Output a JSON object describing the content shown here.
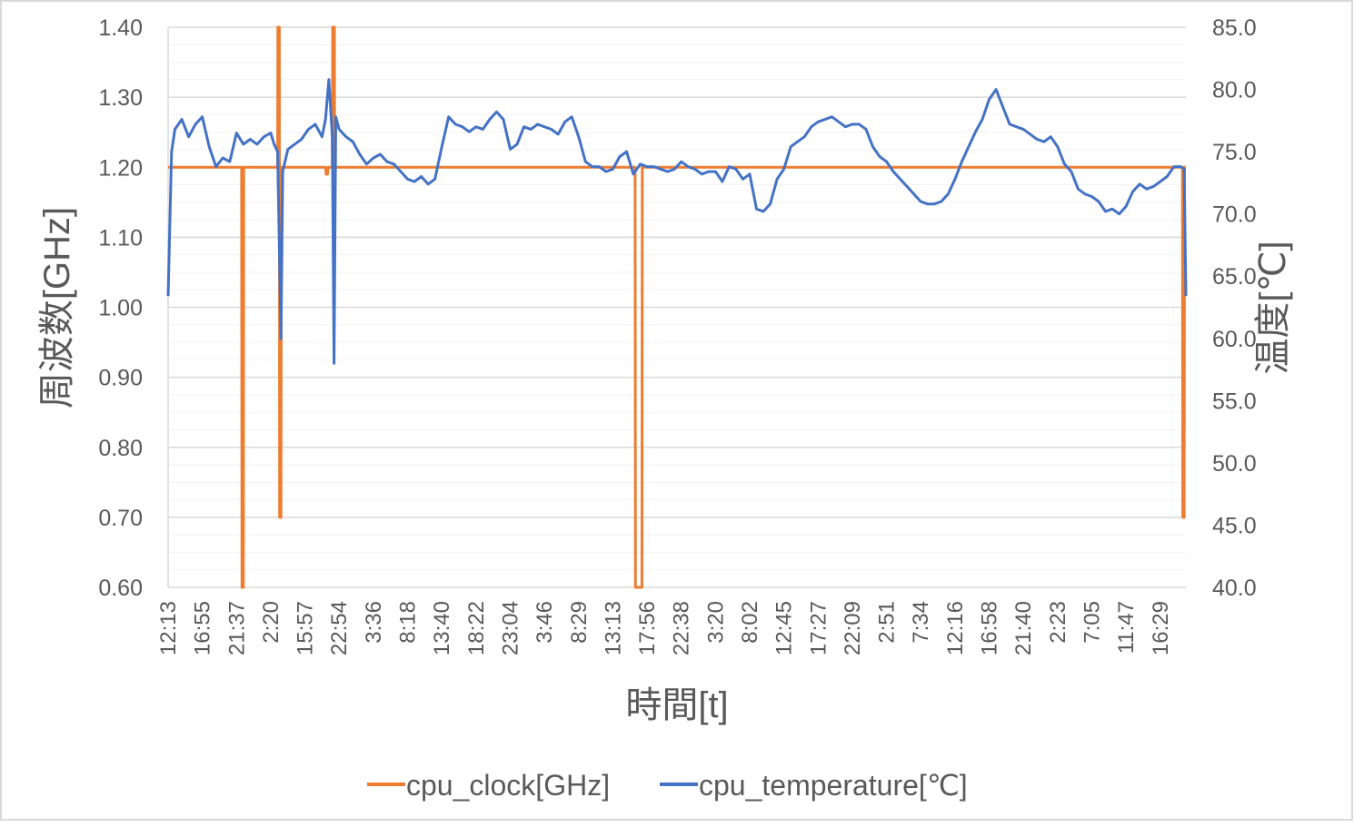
{
  "chart_data": {
    "type": "line",
    "title": "",
    "xlabel": "時間[t]",
    "ylabel": "周波数[GHz]",
    "ylabel_right": "温度[℃]",
    "ylim": [
      0.6,
      1.4
    ],
    "ylim_right": [
      40.0,
      85.0
    ],
    "y_ticks": [
      "0.60",
      "0.70",
      "0.80",
      "0.90",
      "1.00",
      "1.10",
      "1.20",
      "1.30",
      "1.40"
    ],
    "y_right_ticks": [
      "40.0",
      "45.0",
      "50.0",
      "55.0",
      "60.0",
      "65.0",
      "70.0",
      "75.0",
      "80.0",
      "85.0"
    ],
    "x_ticks": [
      "12:13",
      "16:55",
      "21:37",
      "2:20",
      "15:57",
      "22:54",
      "3:36",
      "8:18",
      "13:40",
      "18:22",
      "23:04",
      "3:46",
      "8:29",
      "13:13",
      "17:56",
      "22:38",
      "3:20",
      "8:02",
      "12:45",
      "17:27",
      "22:09",
      "2:51",
      "7:34",
      "12:16",
      "16:58",
      "21:40",
      "2:23",
      "7:05",
      "11:47",
      "16:29"
    ],
    "grid": true,
    "legend_position": "bottom",
    "series": [
      {
        "name": "cpu_clock[GHz]",
        "axis": "left",
        "color": "#ED7D31",
        "points": [
          [
            0,
            1.2
          ],
          [
            2.15,
            1.2
          ],
          [
            2.16,
            0.6
          ],
          [
            2.2,
            0.6
          ],
          [
            2.21,
            1.2
          ],
          [
            3.2,
            1.2
          ],
          [
            3.21,
            1.4
          ],
          [
            3.25,
            1.4
          ],
          [
            3.26,
            0.7
          ],
          [
            3.3,
            0.7
          ],
          [
            3.31,
            1.2
          ],
          [
            4.6,
            1.2
          ],
          [
            4.62,
            1.19
          ],
          [
            4.66,
            1.19
          ],
          [
            4.68,
            1.2
          ],
          [
            4.8,
            1.2
          ],
          [
            4.81,
            1.4
          ],
          [
            4.86,
            1.4
          ],
          [
            4.87,
            1.2
          ],
          [
            13.65,
            1.2
          ],
          [
            13.66,
            0.6
          ],
          [
            13.85,
            0.6
          ],
          [
            13.86,
            1.2
          ],
          [
            29.65,
            1.2
          ],
          [
            29.66,
            0.7
          ],
          [
            29.7,
            0.7
          ],
          [
            29.71,
            1.2
          ],
          [
            29.75,
            1.2
          ]
        ]
      },
      {
        "name": "cpu_temperature[℃]",
        "axis": "right",
        "color": "#4472C4",
        "points": [
          [
            0,
            63.4
          ],
          [
            0.1,
            75
          ],
          [
            0.2,
            76.8
          ],
          [
            0.4,
            77.6
          ],
          [
            0.6,
            76.2
          ],
          [
            0.8,
            77.2
          ],
          [
            1.0,
            77.8
          ],
          [
            1.2,
            75.4
          ],
          [
            1.4,
            73.8
          ],
          [
            1.6,
            74.5
          ],
          [
            1.8,
            74.2
          ],
          [
            2.0,
            76.5
          ],
          [
            2.2,
            75.6
          ],
          [
            2.4,
            76.0
          ],
          [
            2.6,
            75.6
          ],
          [
            2.8,
            76.2
          ],
          [
            3.0,
            76.5
          ],
          [
            3.1,
            75.6
          ],
          [
            3.2,
            75.0
          ],
          [
            3.3,
            60.0
          ],
          [
            3.35,
            73.4
          ],
          [
            3.5,
            75.2
          ],
          [
            3.7,
            75.6
          ],
          [
            3.9,
            76.0
          ],
          [
            4.1,
            76.8
          ],
          [
            4.3,
            77.2
          ],
          [
            4.5,
            76.2
          ],
          [
            4.6,
            77.6
          ],
          [
            4.7,
            80.8
          ],
          [
            4.8,
            76.2
          ],
          [
            4.85,
            58.0
          ],
          [
            4.9,
            77.8
          ],
          [
            5.0,
            76.8
          ],
          [
            5.2,
            76.2
          ],
          [
            5.4,
            75.8
          ],
          [
            5.6,
            74.8
          ],
          [
            5.8,
            74.0
          ],
          [
            6.0,
            74.5
          ],
          [
            6.2,
            74.8
          ],
          [
            6.4,
            74.2
          ],
          [
            6.6,
            74.0
          ],
          [
            6.8,
            73.4
          ],
          [
            7.0,
            72.8
          ],
          [
            7.2,
            72.6
          ],
          [
            7.4,
            73.0
          ],
          [
            7.6,
            72.4
          ],
          [
            7.8,
            72.8
          ],
          [
            8.0,
            75.4
          ],
          [
            8.2,
            77.8
          ],
          [
            8.4,
            77.2
          ],
          [
            8.6,
            77.0
          ],
          [
            8.8,
            76.6
          ],
          [
            9.0,
            77.0
          ],
          [
            9.2,
            76.8
          ],
          [
            9.4,
            77.6
          ],
          [
            9.6,
            78.2
          ],
          [
            9.8,
            77.6
          ],
          [
            10.0,
            75.2
          ],
          [
            10.2,
            75.6
          ],
          [
            10.4,
            77.0
          ],
          [
            10.6,
            76.8
          ],
          [
            10.8,
            77.2
          ],
          [
            11.0,
            77.0
          ],
          [
            11.2,
            76.8
          ],
          [
            11.4,
            76.4
          ],
          [
            11.6,
            77.4
          ],
          [
            11.8,
            77.8
          ],
          [
            12.0,
            76.2
          ],
          [
            12.2,
            74.2
          ],
          [
            12.4,
            73.8
          ],
          [
            12.6,
            73.8
          ],
          [
            12.8,
            73.4
          ],
          [
            13.0,
            73.6
          ],
          [
            13.2,
            74.6
          ],
          [
            13.4,
            75.0
          ],
          [
            13.6,
            73.2
          ],
          [
            13.8,
            74.0
          ],
          [
            14.0,
            73.8
          ],
          [
            14.2,
            73.8
          ],
          [
            14.4,
            73.6
          ],
          [
            14.6,
            73.4
          ],
          [
            14.8,
            73.6
          ],
          [
            15.0,
            74.2
          ],
          [
            15.2,
            73.8
          ],
          [
            15.4,
            73.6
          ],
          [
            15.6,
            73.2
          ],
          [
            15.8,
            73.4
          ],
          [
            16.0,
            73.4
          ],
          [
            16.2,
            72.6
          ],
          [
            16.4,
            73.8
          ],
          [
            16.6,
            73.6
          ],
          [
            16.8,
            72.8
          ],
          [
            17.0,
            73.2
          ],
          [
            17.2,
            70.4
          ],
          [
            17.4,
            70.2
          ],
          [
            17.6,
            70.8
          ],
          [
            17.8,
            72.8
          ],
          [
            18.0,
            73.6
          ],
          [
            18.2,
            75.4
          ],
          [
            18.4,
            75.8
          ],
          [
            18.6,
            76.2
          ],
          [
            18.8,
            77.0
          ],
          [
            19.0,
            77.4
          ],
          [
            19.2,
            77.6
          ],
          [
            19.4,
            77.8
          ],
          [
            19.6,
            77.4
          ],
          [
            19.8,
            77.0
          ],
          [
            20.0,
            77.2
          ],
          [
            20.2,
            77.2
          ],
          [
            20.4,
            76.8
          ],
          [
            20.6,
            75.4
          ],
          [
            20.8,
            74.6
          ],
          [
            21.0,
            74.2
          ],
          [
            21.2,
            73.4
          ],
          [
            21.4,
            72.8
          ],
          [
            21.6,
            72.2
          ],
          [
            21.8,
            71.6
          ],
          [
            22.0,
            71.0
          ],
          [
            22.2,
            70.8
          ],
          [
            22.4,
            70.8
          ],
          [
            22.6,
            71.0
          ],
          [
            22.8,
            71.6
          ],
          [
            23.0,
            72.8
          ],
          [
            23.2,
            74.2
          ],
          [
            23.4,
            75.4
          ],
          [
            23.6,
            76.6
          ],
          [
            23.8,
            77.6
          ],
          [
            24.0,
            79.2
          ],
          [
            24.2,
            80.0
          ],
          [
            24.4,
            78.6
          ],
          [
            24.6,
            77.2
          ],
          [
            24.8,
            77.0
          ],
          [
            25.0,
            76.8
          ],
          [
            25.2,
            76.4
          ],
          [
            25.4,
            76.0
          ],
          [
            25.6,
            75.8
          ],
          [
            25.8,
            76.2
          ],
          [
            26.0,
            75.4
          ],
          [
            26.2,
            74.0
          ],
          [
            26.4,
            73.4
          ],
          [
            26.6,
            72.0
          ],
          [
            26.8,
            71.6
          ],
          [
            27.0,
            71.4
          ],
          [
            27.2,
            71.0
          ],
          [
            27.4,
            70.2
          ],
          [
            27.6,
            70.4
          ],
          [
            27.8,
            70.0
          ],
          [
            28.0,
            70.6
          ],
          [
            28.2,
            71.8
          ],
          [
            28.4,
            72.4
          ],
          [
            28.6,
            72.0
          ],
          [
            28.8,
            72.2
          ],
          [
            29.0,
            72.6
          ],
          [
            29.2,
            73.0
          ],
          [
            29.4,
            73.8
          ],
          [
            29.6,
            73.8
          ],
          [
            29.7,
            73.6
          ],
          [
            29.75,
            63.4
          ]
        ]
      }
    ]
  }
}
